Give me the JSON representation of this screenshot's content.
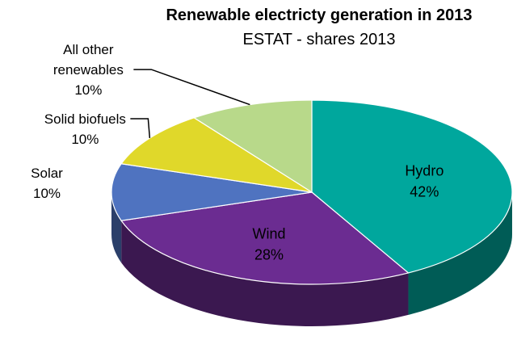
{
  "chart_data": {
    "type": "pie",
    "title": "Renewable electricty generation in 2013",
    "subtitle": "ESTAT - shares 2013",
    "three_d": true,
    "slices": [
      {
        "name": "Hydro",
        "value": 42,
        "label": "42%",
        "color": "#00A79D"
      },
      {
        "name": "Wind",
        "value": 28,
        "label": "28%",
        "color": "#6B2C91"
      },
      {
        "name": "Solar",
        "value": 10,
        "label": "10%",
        "color": "#4F73C0"
      },
      {
        "name": "Solid biofuels",
        "value": 10,
        "label": "10%",
        "color": "#E0D82A"
      },
      {
        "name": "All other renewables",
        "value": 10,
        "label": "10%",
        "color": "#B8D98A"
      }
    ]
  }
}
